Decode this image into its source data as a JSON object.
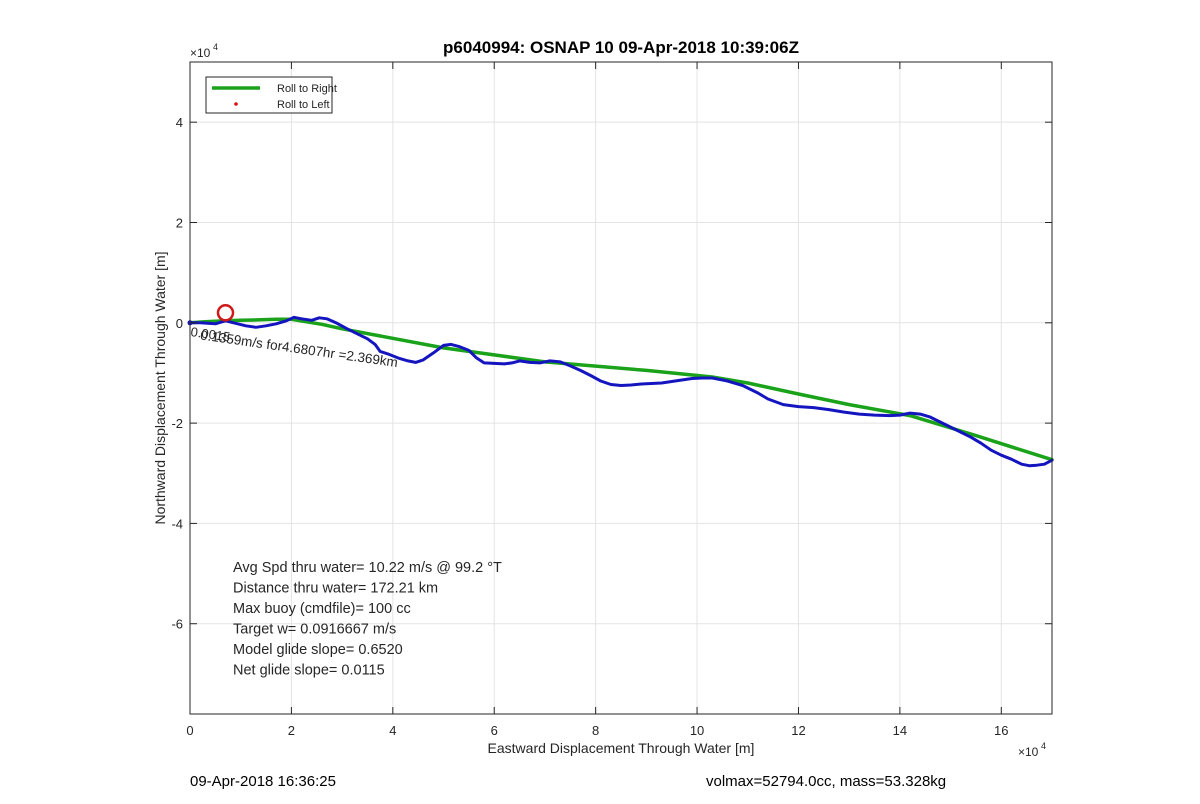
{
  "chart_data": {
    "type": "line",
    "title": "p6040994: OSNAP 10 09-Apr-2018 10:39:06Z",
    "xlabel": "Eastward Displacement Through Water [m]",
    "ylabel": "Northward Displacement Through Water [m]",
    "x_exponent_label": "×10",
    "x_exponent_power": "4",
    "y_exponent_label": "×10",
    "y_exponent_power": "4",
    "xlim": [
      0,
      170000
    ],
    "ylim": [
      -78000,
      52000
    ],
    "x_ticks": [
      0,
      20000,
      40000,
      60000,
      80000,
      100000,
      120000,
      140000,
      160000
    ],
    "x_tick_labels": [
      "0",
      "2",
      "4",
      "6",
      "8",
      "10",
      "12",
      "14",
      "16"
    ],
    "y_ticks": [
      -60000,
      -40000,
      -20000,
      0,
      20000,
      40000
    ],
    "y_tick_labels": [
      "-6",
      "-4",
      "-2",
      "0",
      "2",
      "4"
    ],
    "grid": true,
    "legend_position": "top-left",
    "legend": [
      {
        "label": "Roll to Right",
        "style": "line",
        "color": "#1aa31a"
      },
      {
        "label": "Roll to Left",
        "style": "dot",
        "color": "#e01010"
      }
    ],
    "series": [
      {
        "name": "Roll to Right",
        "color": "#1aa31a",
        "x": [
          0,
          3000,
          7000,
          10000,
          14000,
          17000,
          20000,
          26000,
          30000,
          50000,
          70000,
          90000,
          103000,
          110000,
          120000,
          130000,
          142000,
          155000,
          170000
        ],
        "y": [
          0,
          200,
          400,
          500,
          600,
          700,
          700,
          -300,
          -1200,
          -5000,
          -7800,
          -9500,
          -10800,
          -12000,
          -14200,
          -16300,
          -18500,
          -22500,
          -27300
        ]
      },
      {
        "name": "",
        "color": "#1515c0",
        "x": [
          0,
          2000,
          5000,
          7000,
          9000,
          11000,
          13000,
          15000,
          17000,
          19000,
          20500,
          22000,
          24000,
          25500,
          27000,
          29000,
          31000,
          33000,
          35000,
          36500,
          37500,
          39000,
          41000,
          43000,
          44500,
          46000,
          48000,
          50000,
          51500,
          53000,
          55000,
          56500,
          58000,
          60000,
          62000,
          63500,
          65000,
          67000,
          69000,
          71000,
          73000,
          75000,
          77000,
          79000,
          81000,
          83000,
          85000,
          87000,
          89000,
          91000,
          93000,
          95000,
          97000,
          99000,
          101000,
          103000,
          106000,
          109000,
          112000,
          114000,
          117000,
          120000,
          123000,
          126000,
          129000,
          132000,
          135000,
          138000,
          140000,
          142000,
          144000,
          146000,
          148000,
          150000,
          152000,
          154000,
          156000,
          158000,
          160000,
          162000,
          164000,
          165500,
          167000,
          168500,
          170000
        ],
        "y": [
          0,
          0,
          -200,
          400,
          -100,
          -600,
          -900,
          -600,
          -200,
          400,
          1100,
          800,
          500,
          1000,
          800,
          -100,
          -1200,
          -2200,
          -3200,
          -4300,
          -5700,
          -6200,
          -7000,
          -7600,
          -7900,
          -7400,
          -6000,
          -4500,
          -4300,
          -4700,
          -5500,
          -7000,
          -8000,
          -8100,
          -8200,
          -8000,
          -7600,
          -7900,
          -8000,
          -7600,
          -7800,
          -8600,
          -9500,
          -10500,
          -11600,
          -12300,
          -12500,
          -12400,
          -12200,
          -12100,
          -12000,
          -11700,
          -11400,
          -11100,
          -11000,
          -11000,
          -11600,
          -12500,
          -14000,
          -15200,
          -16300,
          -16700,
          -16900,
          -17300,
          -17800,
          -18200,
          -18400,
          -18500,
          -18400,
          -18000,
          -18200,
          -18800,
          -19800,
          -20800,
          -21800,
          -22800,
          -24000,
          -25400,
          -26400,
          -27200,
          -28200,
          -28500,
          -28400,
          -28200,
          -27400
        ]
      }
    ],
    "start_marker": {
      "x": 7000,
      "y": 2000,
      "color": "#d01818"
    },
    "segment_annotation": "0.1359m/s for4.6807hr =2.369km",
    "overlap_annotation": "0.0015",
    "stats": [
      "Avg Spd thru water= 10.22 m/s @  99.2 °T",
      "Distance thru water= 172.21 km",
      "Max buoy (cmdfile)= 100 cc",
      "Target w= 0.0916667 m/s",
      "Model glide slope= 0.6520",
      "Net glide slope= 0.0115"
    ]
  },
  "footer": {
    "timestamp": "09-Apr-2018 16:36:25",
    "vehicle": "volmax=52794.0cc, mass=53.328kg"
  }
}
